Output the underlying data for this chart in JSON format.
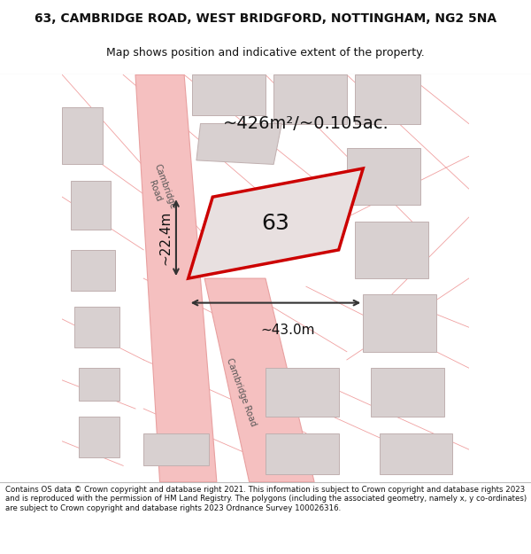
{
  "title_line1": "63, CAMBRIDGE ROAD, WEST BRIDGFORD, NOTTINGHAM, NG2 5NA",
  "title_line2": "Map shows position and indicative extent of the property.",
  "footer_text": "Contains OS data © Crown copyright and database right 2021. This information is subject to Crown copyright and database rights 2023 and is reproduced with the permission of HM Land Registry. The polygons (including the associated geometry, namely x, y co-ordinates) are subject to Crown copyright and database rights 2023 Ordnance Survey 100026316.",
  "area_label": "~426m²/~0.105ac.",
  "width_label": "~43.0m",
  "height_label": "~22.4m",
  "plot_number": "63",
  "map_bg": "#f0eded",
  "road_color": "#f5c0c0",
  "road_stroke": "#e8a0a0",
  "building_color": "#d8d0d0",
  "building_stroke": "#c0b0b0",
  "plot_fill": "#e8e0e0",
  "plot_stroke": "#cc0000",
  "dim_color": "#333333",
  "title_color": "#111111",
  "footer_color": "#111111",
  "pink_line_color": "#f0a0a0",
  "road_label_color": "#555555",
  "divider_color": "#bbbbbb"
}
